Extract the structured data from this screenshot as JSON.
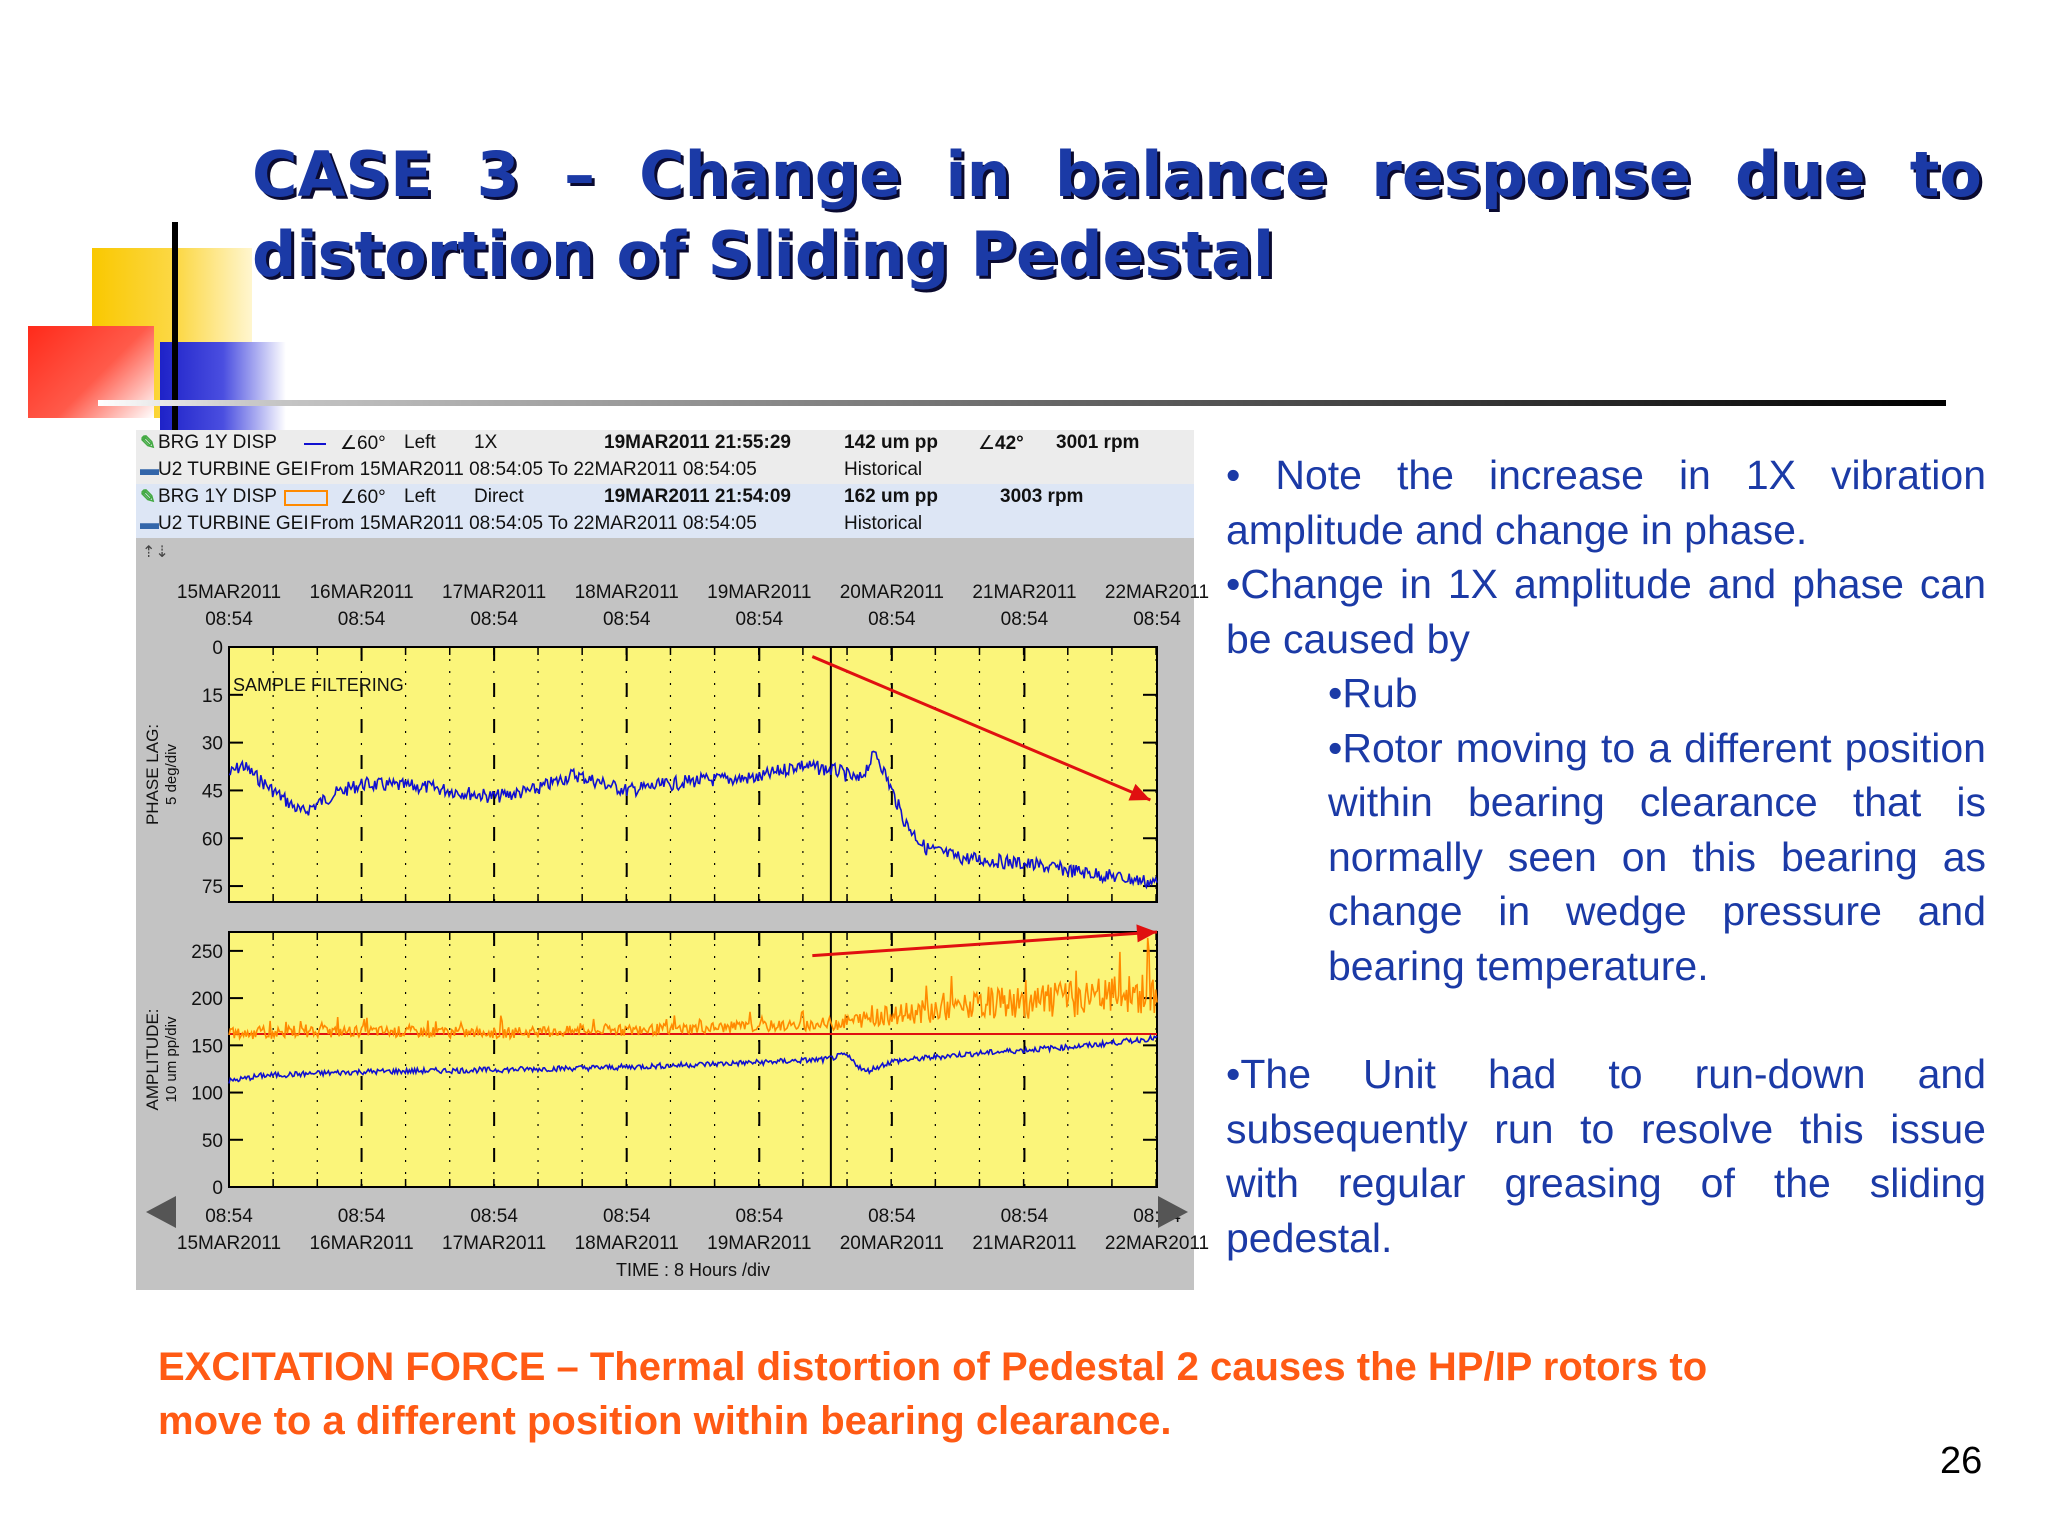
{
  "title": "CASE 3 – Change in balance response due to distortion of Sliding Pedestal",
  "panel": {
    "rows": [
      {
        "name": "BRG 1Y DISP",
        "angle": "60°",
        "side": "Left",
        "filter": "1X",
        "timestamp": "19MAR2011 21:55:29",
        "amp": "142 um pp",
        "phase": "42°",
        "speed": "3001 rpm"
      },
      {
        "name": "U2 TURBINE GEI",
        "range": "From 15MAR2011 08:54:05 To 22MAR2011 08:54:05",
        "mode": "Historical"
      },
      {
        "name": "BRG 1Y DISP",
        "angle": "60°",
        "side": "Left",
        "filter": "Direct",
        "timestamp": "19MAR2011 21:54:09",
        "amp": "162 um pp",
        "speed": "3003 rpm"
      },
      {
        "name": "U2 TURBINE GEI",
        "range": "From 15MAR2011 08:54:05 To 22MAR2011 08:54:05",
        "mode": "Historical"
      }
    ]
  },
  "chart_data": [
    {
      "type": "line",
      "ylabel": "PHASE LAG:",
      "yunit": "5 deg/div",
      "annotation": "SAMPLE FILTERING",
      "yticks": [
        "0",
        "15",
        "30",
        "45",
        "60",
        "75"
      ],
      "ylim": [
        0,
        80
      ],
      "y_inverted": true,
      "background": "#fbf57a",
      "x_dates": [
        "15MAR2011",
        "16MAR2011",
        "17MAR2011",
        "18MAR2011",
        "19MAR2011",
        "20MAR2011",
        "21MAR2011",
        "22MAR2011"
      ],
      "x_times": [
        "08:54",
        "08:54",
        "08:54",
        "08:54",
        "08:54",
        "08:54",
        "08:54",
        "08:54"
      ],
      "series": [
        {
          "color": "#1010d0",
          "x": [
            0,
            0.1,
            0.3,
            0.55,
            0.8,
            1.0,
            1.5,
            2.0,
            2.3,
            2.6,
            3.0,
            3.5,
            4.0,
            4.3,
            4.6,
            4.75,
            4.88,
            5.0,
            5.1,
            5.25,
            5.5,
            6.0,
            6.5,
            7.0
          ],
          "y": [
            40,
            37,
            44,
            52,
            46,
            43,
            44,
            47,
            45,
            40,
            45,
            42,
            41,
            37,
            39,
            42,
            33,
            45,
            55,
            63,
            66,
            68,
            71,
            74
          ]
        }
      ],
      "arrow": {
        "from": [
          4.4,
          3
        ],
        "to": [
          6.95,
          48
        ],
        "color": "#e01010"
      }
    },
    {
      "type": "line",
      "ylabel": "AMPLITUDE:",
      "yunit": "10 um pp/div",
      "yticks": [
        "250",
        "200",
        "150",
        "100",
        "50",
        "0"
      ],
      "ylim": [
        0,
        270
      ],
      "background": "#fbf57a",
      "x_dates": [
        "15MAR2011",
        "16MAR2011",
        "17MAR2011",
        "18MAR2011",
        "19MAR2011",
        "20MAR2011",
        "21MAR2011",
        "22MAR2011"
      ],
      "x_times": [
        "08:54",
        "08:54",
        "08:54",
        "08:54",
        "08:54",
        "08:54",
        "08:54",
        "08:54"
      ],
      "xlabel": "TIME : 8 Hours /div",
      "series": [
        {
          "color": "#ff8a00",
          "x": [
            0,
            1,
            2,
            3,
            4,
            4.5,
            5,
            5.5,
            6,
            6.5,
            7.0
          ],
          "y": [
            162,
            165,
            163,
            166,
            170,
            172,
            182,
            190,
            195,
            200,
            205
          ]
        },
        {
          "color": "#1010d0",
          "x": [
            0,
            0.25,
            1,
            2,
            3,
            4,
            4.5,
            4.65,
            4.8,
            5.0,
            5.5,
            6,
            6.5,
            7.0
          ],
          "y": [
            112,
            118,
            122,
            124,
            127,
            132,
            135,
            140,
            122,
            133,
            140,
            145,
            150,
            158
          ]
        }
      ],
      "arrow": {
        "from": [
          4.4,
          245
        ],
        "to": [
          7.0,
          270
        ],
        "color": "#e01010"
      },
      "reference_line": {
        "y": 162,
        "color": "#e01010"
      }
    }
  ],
  "bullets": {
    "b1": "• Note the increase in 1X vibration amplitude and change in phase.",
    "b2": "•Change in 1X amplitude and phase can be caused by",
    "b2a": "•Rub",
    "b2b": "•Rotor moving to a different position within bearing clearance that is normally seen on this bearing as change in wedge pressure and bearing temperature.",
    "b3": "•The Unit had to run-down and subsequently run to resolve this issue with regular greasing of the sliding pedestal."
  },
  "footer": "EXCITATION FORCE – Thermal distortion of Pedestal 2 causes the HP/IP rotors to move to a different position within bearing clearance.",
  "page_number": "26"
}
